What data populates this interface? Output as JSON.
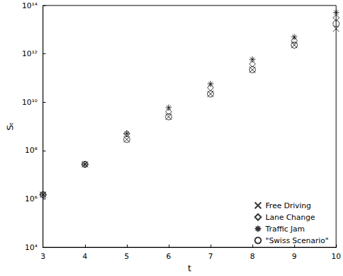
{
  "chart_data": {
    "type": "scatter",
    "x_label": "t",
    "y_label": "Sₜ",
    "log": "y",
    "grid": false,
    "legend": "bottom-right",
    "xlim": [
      3,
      10
    ],
    "xticks": [
      3,
      4,
      5,
      6,
      7,
      8,
      9,
      10
    ],
    "ylim": [
      10000,
      100000000000000
    ],
    "yticks": [
      {
        "value": 10000,
        "label": "10⁴"
      },
      {
        "value": 1000000,
        "label": "10⁶"
      },
      {
        "value": 100000000,
        "label": "10⁸"
      },
      {
        "value": 10000000000,
        "label": "10¹⁰"
      },
      {
        "value": 1000000000000,
        "label": "10¹²"
      },
      {
        "value": 100000000000000,
        "label": "10¹⁴"
      }
    ],
    "x": [
      3,
      4,
      5,
      6,
      7,
      8,
      9,
      10
    ],
    "series": [
      {
        "name": "Free Driving",
        "color": "#000000",
        "marker": "x",
        "values": [
          1500000,
          27000000,
          290000000,
          2500000000,
          22000000000,
          220000000000,
          2300000000000,
          11000000000000
        ]
      },
      {
        "name": "Lane Change",
        "color": "#000000",
        "marker": "diamond",
        "values": [
          1500000,
          27000000,
          500000000,
          4000000000,
          40000000000,
          380000000000,
          3500000000000,
          31000000000000
        ]
      },
      {
        "name": "Traffic Jam",
        "color": "#000000",
        "marker": "asterisk",
        "values": [
          1500000,
          27000000,
          500000000,
          6000000000,
          57000000000,
          590000000000,
          5000000000000,
          51000000000000
        ]
      },
      {
        "name": "\"Swiss Scenario\"",
        "color": "#000000",
        "marker": "circle",
        "values": [
          1500000,
          27000000,
          290000000,
          2500000000,
          22000000000,
          220000000000,
          2300000000000,
          18000000000000
        ]
      }
    ]
  }
}
